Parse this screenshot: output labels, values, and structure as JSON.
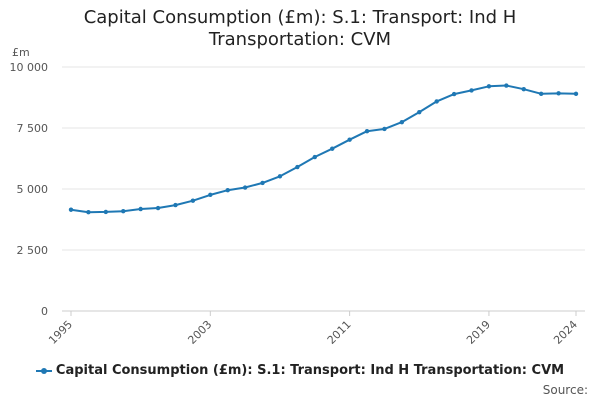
{
  "chart_data": {
    "type": "line",
    "title_line1": "Capital Consumption (£m): S.1: Transport: Ind H",
    "title_line2": "Transportation: CVM",
    "y_unit": "£m",
    "ylim": [
      0,
      10000
    ],
    "y_ticks": [
      0,
      2500,
      5000,
      7500,
      10000
    ],
    "y_tick_labels": [
      "0",
      "2 500",
      "5 000",
      "7 500",
      "10 000"
    ],
    "x_tick_labels": [
      "1995",
      "2003",
      "2011",
      "2019",
      "2024"
    ],
    "x": [
      1995,
      1996,
      1997,
      1998,
      1999,
      2000,
      2001,
      2002,
      2003,
      2004,
      2005,
      2006,
      2007,
      2008,
      2009,
      2010,
      2011,
      2012,
      2013,
      2014,
      2015,
      2016,
      2017,
      2018,
      2019,
      2020,
      2021,
      2022,
      2023,
      2024
    ],
    "series": [
      {
        "name": "Capital Consumption (£m): S.1: Transport: Ind H Transportation: CVM",
        "color": "#1f78b4",
        "values": [
          4150,
          4050,
          4060,
          4090,
          4180,
          4220,
          4340,
          4520,
          4760,
          4950,
          5060,
          5250,
          5520,
          5900,
          6310,
          6650,
          7020,
          7370,
          7460,
          7740,
          8150,
          8590,
          8890,
          9040,
          9210,
          9240,
          9090,
          8900,
          8920,
          8900
        ]
      }
    ],
    "legend_label": "Capital Consumption (£m): S.1: Transport: Ind H Transportation: CVM",
    "source_label": "Source:"
  }
}
